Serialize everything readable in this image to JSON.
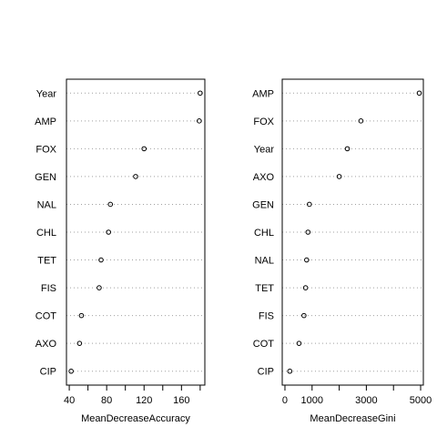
{
  "chart_data": [
    {
      "type": "dotchart",
      "xlabel": "MeanDecreaseAccuracy",
      "ylabel": "",
      "xlim": [
        37,
        185
      ],
      "xticks": [
        40,
        80,
        120,
        160
      ],
      "xticks_all": [
        40,
        60,
        80,
        100,
        120,
        140,
        160,
        180
      ],
      "grid": "dotted-horizontal",
      "categories": [
        "Year",
        "AMP",
        "FOX",
        "GEN",
        "NAL",
        "CHL",
        "TET",
        "FIS",
        "COT",
        "AXO",
        "CIP"
      ],
      "values": [
        180,
        179,
        120,
        111,
        84,
        82,
        74,
        72,
        53,
        51,
        42
      ]
    },
    {
      "type": "dotchart",
      "xlabel": "MeanDecreaseGini",
      "ylabel": "",
      "xlim": [
        -100,
        5100
      ],
      "xticks": [
        0,
        1000,
        3000,
        5000
      ],
      "xticks_all": [
        0,
        1000,
        2000,
        3000,
        4000,
        5000
      ],
      "grid": "dotted-horizontal",
      "categories": [
        "AMP",
        "FOX",
        "Year",
        "AXO",
        "GEN",
        "CHL",
        "NAL",
        "TET",
        "FIS",
        "COT",
        "CIP"
      ],
      "values": [
        4950,
        2800,
        2300,
        2000,
        900,
        850,
        800,
        760,
        700,
        520,
        180
      ]
    }
  ]
}
